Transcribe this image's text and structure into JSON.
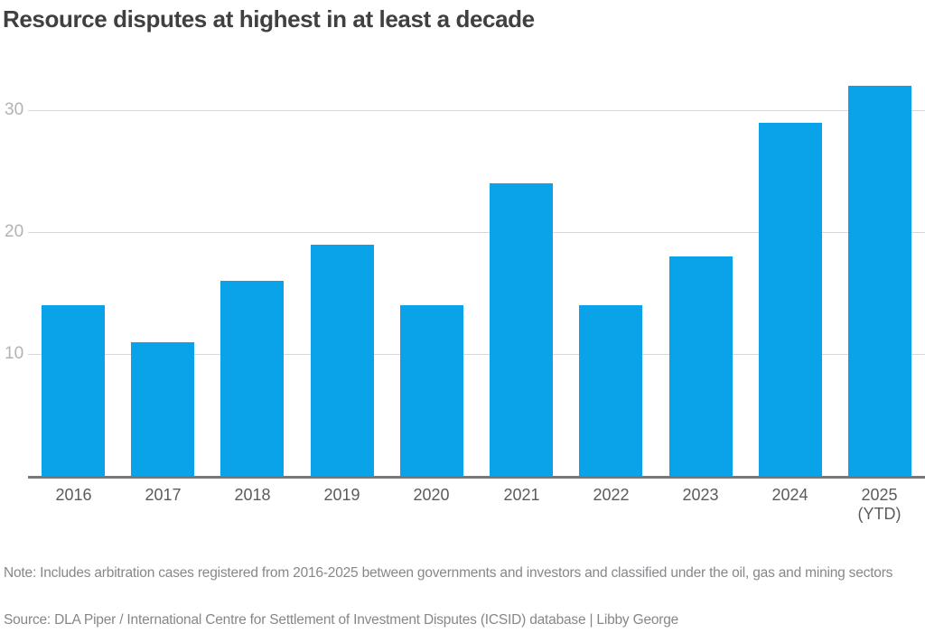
{
  "title": "Resource disputes at highest in at least a decade",
  "note_line": "Note: Includes arbitration cases registered from 2016-2025 between governments and investors and classified under the oil, gas and mining sectors",
  "source_line": "Source: DLA Piper / International Centre for Settlement of Investment Disputes (ICSID) database | Libby George",
  "colors": {
    "bar": "#0aa2e8",
    "title_text": "#404042",
    "x_label": "#595b5e",
    "y_label": "#b1b3b5",
    "gridline": "#d7d8d9",
    "baseline": "#77787b",
    "note_text": "#85878a",
    "background": "#ffffff"
  },
  "chart_data": {
    "type": "bar",
    "title": "Resource disputes at highest in at least a decade",
    "categories": [
      "2016",
      "2017",
      "2018",
      "2019",
      "2020",
      "2021",
      "2022",
      "2023",
      "2024",
      "2025"
    ],
    "category_sublabels": [
      "",
      "",
      "",
      "",
      "",
      "",
      "",
      "",
      "",
      "(YTD)"
    ],
    "values": [
      14,
      11,
      16,
      19,
      14,
      24,
      14,
      18,
      29,
      32
    ],
    "xlabel": "",
    "ylabel": "",
    "ylim": [
      0,
      33.5
    ],
    "yticks": [
      10,
      20,
      30
    ],
    "grid": true,
    "legend": false,
    "note": "Note: Includes arbitration cases registered from 2016-2025 between governments and investors and classified under the oil, gas and mining sectors",
    "source": "Source: DLA Piper / International Centre for Settlement of Investment Disputes (ICSID) database | Libby George"
  }
}
